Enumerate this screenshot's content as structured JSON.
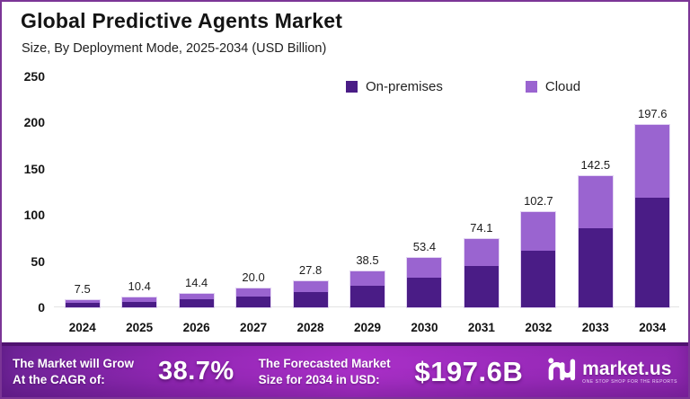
{
  "window": {
    "border_color": "#7b3596",
    "background": "#ffffff"
  },
  "header": {
    "title": "Global Predictive Agents Market",
    "subtitle": "Size, By Deployment Mode, 2025-2034 (USD Billion)"
  },
  "legend": {
    "items": [
      {
        "label": "On-premises",
        "color": "#4a1c86"
      },
      {
        "label": "Cloud",
        "color": "#9a64d0"
      }
    ]
  },
  "chart_data": {
    "type": "bar",
    "stacked": true,
    "title": "Global Predictive Agents Market",
    "subtitle": "Size, By Deployment Mode, 2025-2034 (USD Billion)",
    "unit": "USD Billion",
    "categories": [
      "2024",
      "2025",
      "2026",
      "2027",
      "2028",
      "2029",
      "2030",
      "2031",
      "2032",
      "2033",
      "2034"
    ],
    "series": [
      {
        "name": "On-premises",
        "color": "#4a1c86",
        "values": [
          4.5,
          6.2,
          8.6,
          12.0,
          16.7,
          23.1,
          32.0,
          44.5,
          61.6,
          85.5,
          118.6
        ]
      },
      {
        "name": "Cloud",
        "color": "#9a64d0",
        "values": [
          3.0,
          4.2,
          5.8,
          8.0,
          11.1,
          15.4,
          21.4,
          29.6,
          41.1,
          57.0,
          79.0
        ]
      }
    ],
    "totals": [
      7.5,
      10.4,
      14.4,
      20.0,
      27.8,
      38.5,
      53.4,
      74.1,
      102.7,
      142.5,
      197.6
    ],
    "total_labels": [
      "7.5",
      "10.4",
      "14.4",
      "20.0",
      "27.8",
      "38.5",
      "53.4",
      "74.1",
      "102.7",
      "142.5",
      "197.6"
    ],
    "xlabel": "",
    "ylabel": "",
    "ylim": [
      0,
      250
    ],
    "yticks": [
      0,
      50,
      100,
      150,
      200,
      250
    ],
    "grid": false,
    "legend_position": "top-center"
  },
  "banner": {
    "cagr_label_line1": "The Market will Grow",
    "cagr_label_line2": "At the CAGR of:",
    "cagr_value": "38.7%",
    "forecast_label_line1": "The Forecasted Market",
    "forecast_label_line2": "Size for 2034 in USD:",
    "forecast_value": "$197.6B",
    "brand": {
      "name": "market.us",
      "tagline": "ONE STOP SHOP FOR THE REPORTS",
      "logo_icon": "market-us-logo"
    }
  }
}
